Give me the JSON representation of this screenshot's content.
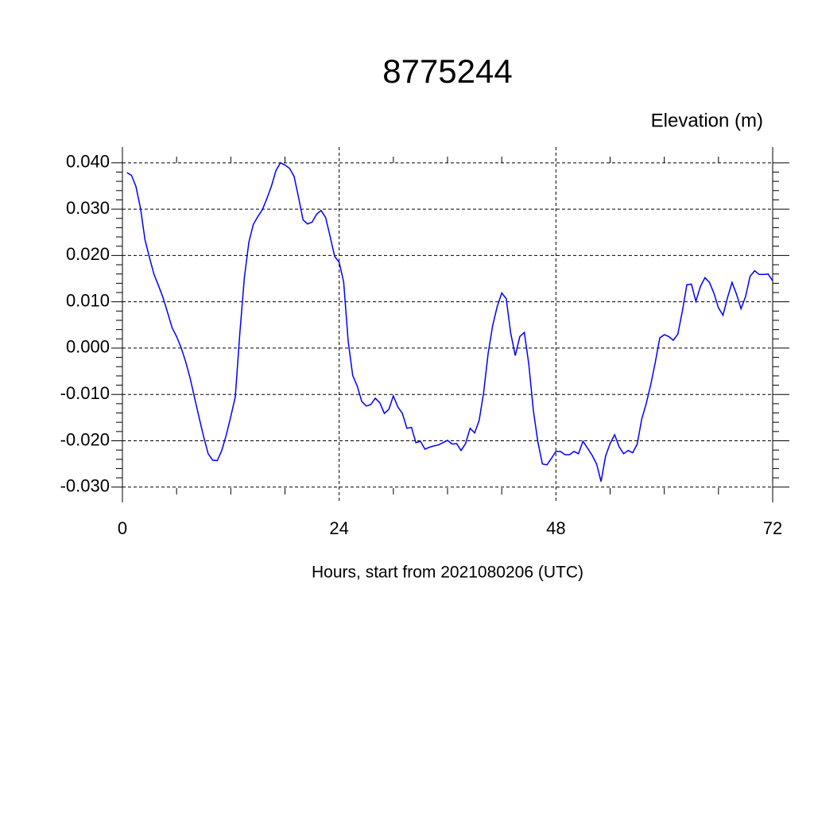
{
  "chart_data": {
    "type": "line",
    "title": "8775244",
    "y_label": "Elevation (m)",
    "x_label": "Hours, start from 2021080206 (UTC)",
    "series": [
      {
        "color": "#0000ff",
        "x": [
          0.5,
          1.0,
          1.5,
          2.0,
          2.5,
          3.0,
          3.5,
          4.0,
          4.5,
          5.0,
          5.5,
          6.0,
          6.5,
          7.0,
          7.5,
          8.0,
          8.5,
          9.0,
          9.5,
          10.0,
          10.5,
          11.0,
          11.5,
          12.0,
          12.5,
          13.0,
          13.5,
          14.0,
          14.5,
          15.0,
          15.5,
          16.0,
          16.5,
          17.0,
          17.5,
          18.0,
          18.5,
          19.0,
          19.5,
          20.0,
          20.5,
          21.0,
          21.5,
          22.0,
          22.5,
          23.0,
          23.5,
          24.0,
          24.5,
          25.0,
          25.5,
          26.0,
          26.5,
          27.0,
          27.5,
          28.0,
          28.5,
          29.0,
          29.5,
          30.0,
          30.5,
          31.0,
          31.5,
          32.0,
          32.5,
          33.0,
          33.5,
          34.0,
          34.5,
          35.0,
          35.5,
          36.0,
          36.5,
          37.0,
          37.5,
          38.0,
          38.5,
          39.0,
          39.5,
          40.0,
          40.5,
          41.0,
          41.5,
          42.0,
          42.5,
          43.0,
          43.5,
          44.0,
          44.5,
          45.0,
          45.5,
          46.0,
          46.5,
          47.0,
          47.5,
          48.0,
          48.5,
          49.0,
          49.5,
          50.0,
          50.5,
          51.0,
          51.5,
          52.0,
          52.5,
          53.0,
          53.5,
          54.0,
          54.5,
          55.0,
          55.5,
          56.0,
          56.5,
          57.0,
          57.5,
          58.0,
          58.5,
          59.0,
          59.5,
          60.0,
          60.5,
          61.0,
          61.5,
          62.0,
          62.5,
          63.0,
          63.5,
          64.0,
          64.5,
          65.0,
          65.5,
          66.0,
          66.5,
          67.0,
          67.5,
          68.0,
          68.5,
          69.0,
          69.5,
          70.0,
          70.5,
          71.0,
          71.5,
          72.0
        ],
        "values": [
          0.0379,
          0.0373,
          0.0349,
          0.0302,
          0.0234,
          0.0195,
          0.0159,
          0.0135,
          0.0109,
          0.0077,
          0.0044,
          0.0025,
          0.0001,
          -0.0029,
          -0.0065,
          -0.0108,
          -0.0151,
          -0.0192,
          -0.0228,
          -0.0242,
          -0.0243,
          -0.0221,
          -0.0187,
          -0.0148,
          -0.0105,
          0.0032,
          0.0152,
          0.0229,
          0.0267,
          0.0284,
          0.0299,
          0.0323,
          0.035,
          0.0383,
          0.04,
          0.0395,
          0.0388,
          0.0371,
          0.0326,
          0.0277,
          0.0268,
          0.0272,
          0.0289,
          0.0297,
          0.0282,
          0.0241,
          0.0198,
          0.0185,
          0.0143,
          0.0015,
          -0.0059,
          -0.0082,
          -0.0115,
          -0.0125,
          -0.0122,
          -0.0108,
          -0.0118,
          -0.0141,
          -0.0132,
          -0.0103,
          -0.0127,
          -0.0141,
          -0.0173,
          -0.0171,
          -0.0204,
          -0.0201,
          -0.0218,
          -0.0214,
          -0.0211,
          -0.0209,
          -0.0204,
          -0.0199,
          -0.0207,
          -0.0206,
          -0.0221,
          -0.0206,
          -0.0173,
          -0.0183,
          -0.0156,
          -0.0096,
          -0.0011,
          0.0049,
          0.009,
          0.0119,
          0.0107,
          0.0032,
          -0.0016,
          0.0025,
          0.0034,
          -0.0036,
          -0.0134,
          -0.0202,
          -0.025,
          -0.0252,
          -0.0238,
          -0.0223,
          -0.0223,
          -0.023,
          -0.023,
          -0.0223,
          -0.0228,
          -0.0201,
          -0.0216,
          -0.0231,
          -0.025,
          -0.0288,
          -0.0233,
          -0.0206,
          -0.0187,
          -0.0213,
          -0.0228,
          -0.0221,
          -0.0226,
          -0.0207,
          -0.0153,
          -0.012,
          -0.0079,
          -0.0031,
          0.0022,
          0.0029,
          0.0025,
          0.0017,
          0.003,
          0.008,
          0.0137,
          0.0138,
          0.0101,
          0.0133,
          0.0152,
          0.0142,
          0.0118,
          0.0087,
          0.0071,
          0.0109,
          0.0142,
          0.0116,
          0.0085,
          0.0111,
          0.0155,
          0.0167,
          0.0159,
          0.0159,
          0.016,
          0.0145
        ]
      }
    ],
    "xlim": [
      0,
      72
    ],
    "xticks": [
      0,
      24,
      48,
      72
    ],
    "ylim": [
      -0.0333,
      0.0434
    ],
    "yticks": [
      {
        "value": -0.03,
        "label": "-0.030"
      },
      {
        "value": -0.02,
        "label": "-0.020"
      },
      {
        "value": -0.01,
        "label": "-0.010"
      },
      {
        "value": 0,
        "label": "0.000"
      },
      {
        "value": 0.01,
        "label": "0.010"
      },
      {
        "value": 0.02,
        "label": "0.020"
      },
      {
        "value": 0.03,
        "label": "0.030"
      },
      {
        "value": 0.04,
        "label": "0.040"
      }
    ],
    "grid": true
  }
}
